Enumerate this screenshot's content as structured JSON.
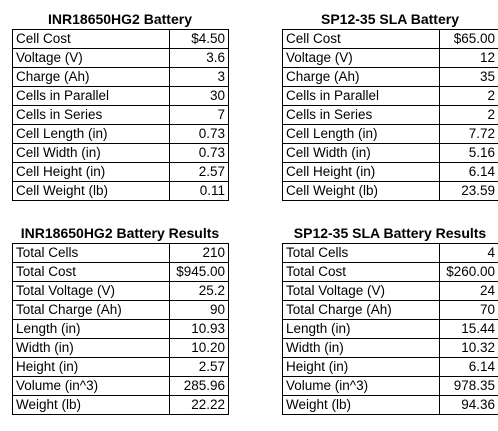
{
  "tables": [
    {
      "title": "INR18650HG2 Battery",
      "rows": [
        {
          "label": "Cell Cost",
          "value": "$4.50"
        },
        {
          "label": "Voltage (V)",
          "value": "3.6"
        },
        {
          "label": "Charge (Ah)",
          "value": "3"
        },
        {
          "label": "Cells in Parallel",
          "value": "30"
        },
        {
          "label": "Cells in Series",
          "value": "7"
        },
        {
          "label": "Cell Length (in)",
          "value": "0.73"
        },
        {
          "label": "Cell Width (in)",
          "value": "0.73"
        },
        {
          "label": "Cell Height (in)",
          "value": "2.57"
        },
        {
          "label": "Cell Weight (lb)",
          "value": "0.11"
        }
      ]
    },
    {
      "title": "SP12-35 SLA Battery",
      "rows": [
        {
          "label": "Cell Cost",
          "value": "$65.00"
        },
        {
          "label": "Voltage (V)",
          "value": "12"
        },
        {
          "label": "Charge (Ah)",
          "value": "35"
        },
        {
          "label": "Cells in Parallel",
          "value": "2"
        },
        {
          "label": "Cells in Series",
          "value": "2"
        },
        {
          "label": "Cell Length (in)",
          "value": "7.72"
        },
        {
          "label": "Cell Width (in)",
          "value": "5.16"
        },
        {
          "label": "Cell Height (in)",
          "value": "6.14"
        },
        {
          "label": "Cell Weight (lb)",
          "value": "23.59"
        }
      ]
    },
    {
      "title": "INR18650HG2 Battery Results",
      "rows": [
        {
          "label": "Total Cells",
          "value": "210"
        },
        {
          "label": "Total Cost",
          "value": "$945.00"
        },
        {
          "label": "Total Voltage (V)",
          "value": "25.2"
        },
        {
          "label": "Total Charge (Ah)",
          "value": "90"
        },
        {
          "label": "Length (in)",
          "value": "10.93"
        },
        {
          "label": "Width (in)",
          "value": "10.20"
        },
        {
          "label": "Height (in)",
          "value": "2.57"
        },
        {
          "label": "Volume (in^3)",
          "value": "285.96"
        },
        {
          "label": "Weight (lb)",
          "value": "22.22"
        }
      ]
    },
    {
      "title": "SP12-35 SLA Battery Results",
      "rows": [
        {
          "label": "Total Cells",
          "value": "4"
        },
        {
          "label": "Total Cost",
          "value": "$260.00"
        },
        {
          "label": "Total Voltage (V)",
          "value": "24"
        },
        {
          "label": "Total Charge (Ah)",
          "value": "70"
        },
        {
          "label": "Length (in)",
          "value": "15.44"
        },
        {
          "label": "Width (in)",
          "value": "10.32"
        },
        {
          "label": "Height (in)",
          "value": "6.14"
        },
        {
          "label": "Volume (in^3)",
          "value": "978.35"
        },
        {
          "label": "Weight (lb)",
          "value": "94.36"
        }
      ]
    }
  ]
}
